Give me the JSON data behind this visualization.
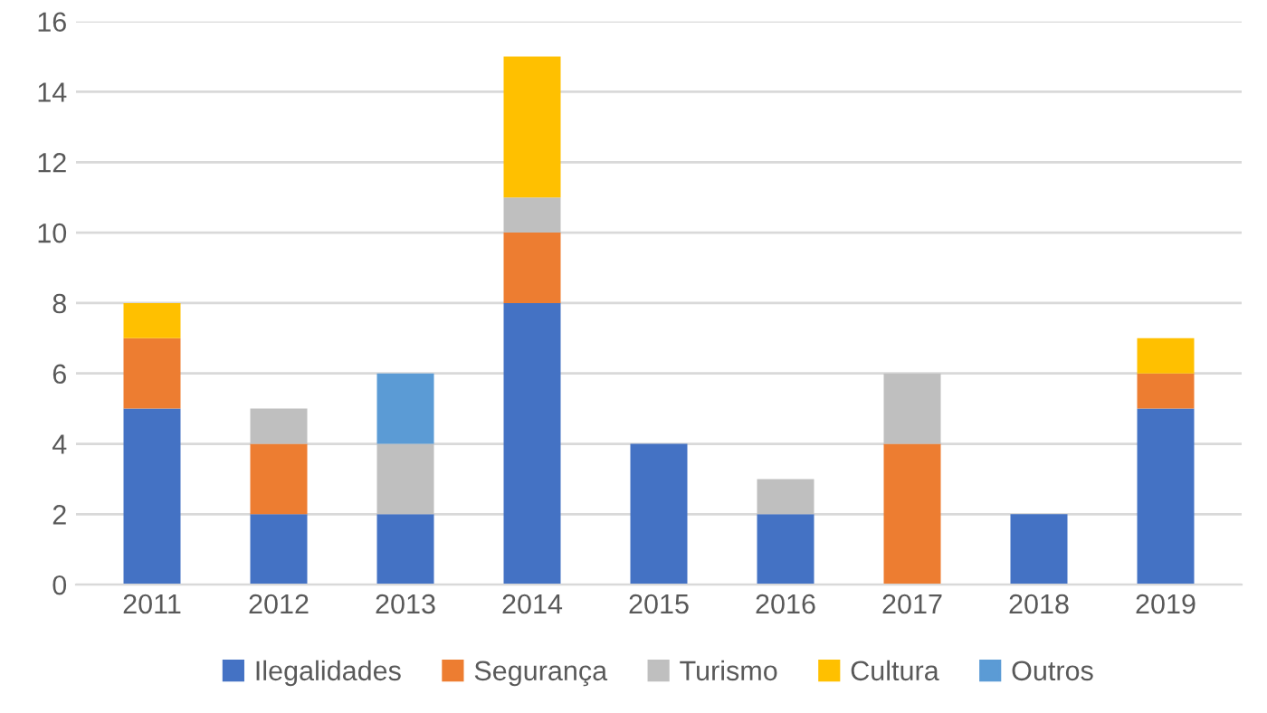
{
  "chart_data": {
    "type": "bar",
    "stacked": true,
    "categories": [
      "2011",
      "2012",
      "2013",
      "2014",
      "2015",
      "2016",
      "2017",
      "2018",
      "2019"
    ],
    "series": [
      {
        "name": "Ilegalidades",
        "color": "#4472c4",
        "values": [
          5,
          2,
          2,
          8,
          4,
          2,
          null,
          2,
          5
        ]
      },
      {
        "name": "Segurança",
        "color": "#ed7d31",
        "values": [
          2,
          2,
          null,
          2,
          null,
          null,
          4,
          null,
          1
        ]
      },
      {
        "name": "Turismo",
        "color": "#bfbfbf",
        "values": [
          null,
          1,
          2,
          1,
          null,
          1,
          2,
          null,
          null
        ]
      },
      {
        "name": "Cultura",
        "color": "#ffc000",
        "values": [
          1,
          null,
          null,
          4,
          null,
          null,
          null,
          null,
          1
        ]
      },
      {
        "name": "Outros",
        "color": "#5b9bd5",
        "values": [
          null,
          null,
          2,
          null,
          null,
          null,
          null,
          null,
          null
        ]
      }
    ],
    "ylim": [
      0,
      16
    ],
    "yticks": [
      0,
      2,
      4,
      6,
      8,
      10,
      12,
      14,
      16
    ],
    "grid": "y",
    "legend": "bottom"
  }
}
